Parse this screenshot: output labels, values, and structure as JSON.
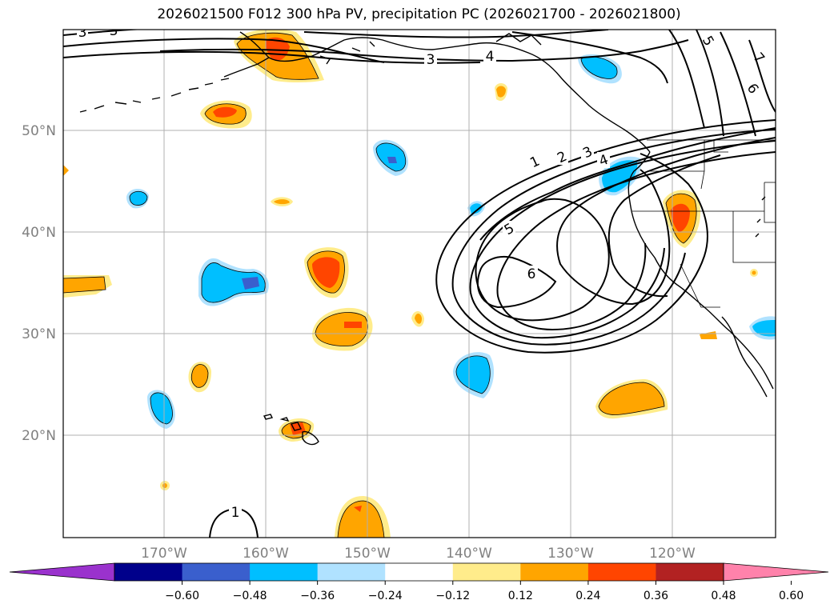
{
  "title": "2026021500 F012 300 hPa PV, precipitation PC (2026021700 - 2026021800)",
  "lat_labels": [
    "50°N",
    "40°N",
    "30°N",
    "20°N"
  ],
  "lon_labels": [
    "170°W",
    "160°W",
    "150°W",
    "140°W",
    "130°W",
    "120°W"
  ],
  "contour_labels": [
    "3",
    "3",
    "3",
    "4",
    "5",
    "7",
    "6",
    "1",
    "2",
    "3",
    "4",
    "5",
    "6",
    "1"
  ],
  "colorbar": {
    "ticks": [
      "−0.60",
      "−0.48",
      "−0.36",
      "−0.24",
      "−0.12",
      "0.12",
      "0.24",
      "0.36",
      "0.48",
      "0.60"
    ],
    "colors": [
      "#9a32cd",
      "#00008b",
      "#3a5fcd",
      "#00bfff",
      "#b0e2ff",
      "#ffffff",
      "#ffec8b",
      "#ffa500",
      "#ff4500",
      "#b22222",
      "#ff82ab"
    ]
  }
}
